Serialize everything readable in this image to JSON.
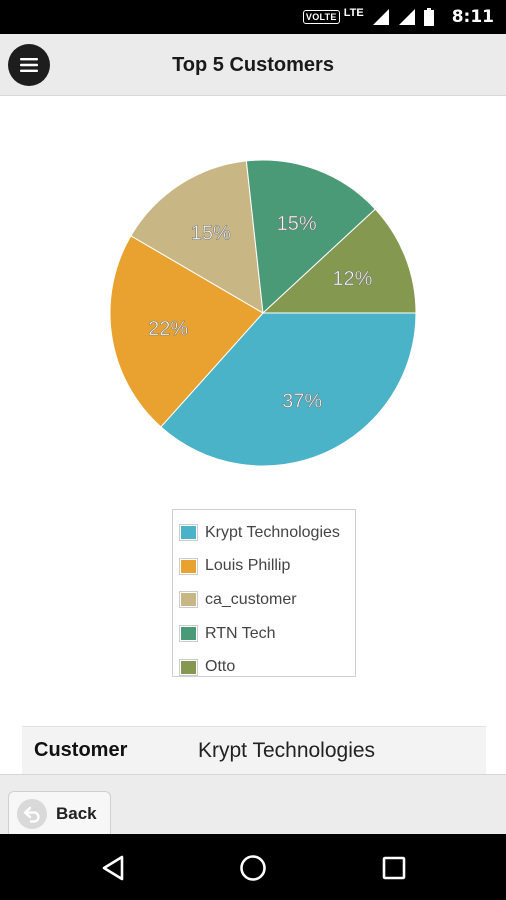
{
  "status_bar": {
    "volte": "VOLTE",
    "network": "LTE",
    "time": "8:11"
  },
  "header": {
    "title": "Top 5 Customers",
    "menu_icon": "hamburger-menu-icon"
  },
  "chart_data": {
    "type": "pie",
    "categories": [
      "Krypt Technologies",
      "Louis Phillip",
      "ca_customer",
      "RTN Tech",
      "Otto"
    ],
    "values": [
      37,
      22,
      15,
      15,
      12
    ],
    "labels": [
      "37%",
      "22%",
      "15%",
      "15%",
      "12%"
    ],
    "colors": [
      "#4ab3c7",
      "#e9a22f",
      "#c8b784",
      "#4a9a78",
      "#84984f"
    ],
    "title": "",
    "legend_position": "bottom"
  },
  "detail": {
    "key": "Customer",
    "value": "Krypt Technologies"
  },
  "footer": {
    "back_label": "Back",
    "back_icon": "back-arrow-icon"
  },
  "nav_bar": {
    "back_icon": "nav-back-triangle-icon",
    "home_icon": "nav-home-circle-icon",
    "recents_icon": "nav-recents-square-icon"
  }
}
